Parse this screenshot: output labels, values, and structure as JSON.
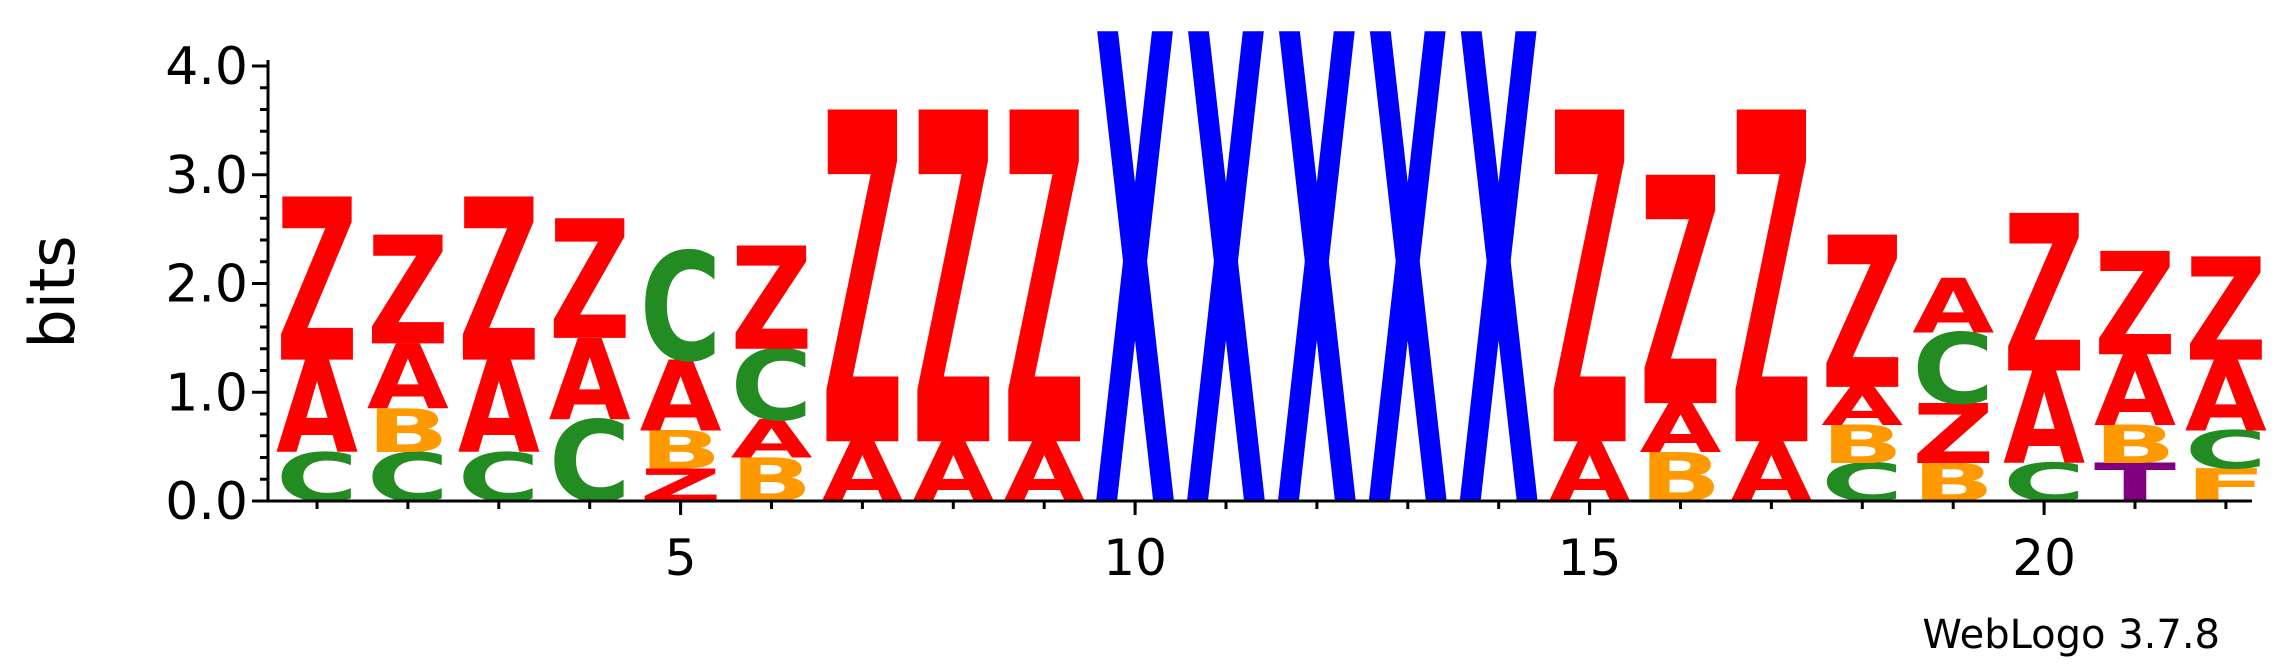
{
  "chart_data": {
    "type": "sequence_logo",
    "ylabel": "bits",
    "ylim": [
      0,
      4.0
    ],
    "yticks": [
      "0.0",
      "1.0",
      "2.0",
      "3.0",
      "4.0"
    ],
    "xticks": [
      {
        "position": 5,
        "label": "5"
      },
      {
        "position": 10,
        "label": "10"
      },
      {
        "position": 15,
        "label": "15"
      },
      {
        "position": 20,
        "label": "20"
      }
    ],
    "credit": "WebLogo 3.7.8",
    "colors": {
      "Z": "#ff0000",
      "A": "#ff0000",
      "X": "#0000ff",
      "C": "#228b22",
      "B": "#ff9900",
      "F": "#ff9900",
      "T": "#800080"
    },
    "positions": [
      {
        "pos": 1,
        "stack": [
          {
            "letter": "C",
            "bits": 0.45
          },
          {
            "letter": "A",
            "bits": 0.85
          },
          {
            "letter": "Z",
            "bits": 1.5
          }
        ]
      },
      {
        "pos": 2,
        "stack": [
          {
            "letter": "C",
            "bits": 0.45
          },
          {
            "letter": "B",
            "bits": 0.4
          },
          {
            "letter": "A",
            "bits": 0.6
          },
          {
            "letter": "Z",
            "bits": 1.0
          }
        ]
      },
      {
        "pos": 3,
        "stack": [
          {
            "letter": "C",
            "bits": 0.45
          },
          {
            "letter": "A",
            "bits": 0.85
          },
          {
            "letter": "Z",
            "bits": 1.5
          }
        ]
      },
      {
        "pos": 4,
        "stack": [
          {
            "letter": "C",
            "bits": 0.75
          },
          {
            "letter": "A",
            "bits": 0.75
          },
          {
            "letter": "Z",
            "bits": 1.1
          }
        ]
      },
      {
        "pos": 5,
        "stack": [
          {
            "letter": "Z",
            "bits": 0.3
          },
          {
            "letter": "B",
            "bits": 0.35
          },
          {
            "letter": "A",
            "bits": 0.65
          },
          {
            "letter": "C",
            "bits": 1.0
          }
        ]
      },
      {
        "pos": 6,
        "stack": [
          {
            "letter": "B",
            "bits": 0.4
          },
          {
            "letter": "A",
            "bits": 0.35
          },
          {
            "letter": "C",
            "bits": 0.65
          },
          {
            "letter": "Z",
            "bits": 0.95
          }
        ]
      },
      {
        "pos": 7,
        "stack": [
          {
            "letter": "A",
            "bits": 0.55
          },
          {
            "letter": "Z",
            "bits": 3.05
          }
        ]
      },
      {
        "pos": 8,
        "stack": [
          {
            "letter": "A",
            "bits": 0.55
          },
          {
            "letter": "Z",
            "bits": 3.05
          }
        ]
      },
      {
        "pos": 9,
        "stack": [
          {
            "letter": "A",
            "bits": 0.55
          },
          {
            "letter": "Z",
            "bits": 3.05
          }
        ]
      },
      {
        "pos": 10,
        "stack": [
          {
            "letter": "X",
            "bits": 4.32
          }
        ]
      },
      {
        "pos": 11,
        "stack": [
          {
            "letter": "X",
            "bits": 4.32
          }
        ]
      },
      {
        "pos": 12,
        "stack": [
          {
            "letter": "X",
            "bits": 4.32
          }
        ]
      },
      {
        "pos": 13,
        "stack": [
          {
            "letter": "X",
            "bits": 4.32
          }
        ]
      },
      {
        "pos": 14,
        "stack": [
          {
            "letter": "X",
            "bits": 4.32
          }
        ]
      },
      {
        "pos": 15,
        "stack": [
          {
            "letter": "A",
            "bits": 0.55
          },
          {
            "letter": "Z",
            "bits": 3.05
          }
        ]
      },
      {
        "pos": 16,
        "stack": [
          {
            "letter": "B",
            "bits": 0.45
          },
          {
            "letter": "A",
            "bits": 0.45
          },
          {
            "letter": "Z",
            "bits": 2.1
          }
        ]
      },
      {
        "pos": 17,
        "stack": [
          {
            "letter": "A",
            "bits": 0.55
          },
          {
            "letter": "Z",
            "bits": 3.05
          }
        ]
      },
      {
        "pos": 18,
        "stack": [
          {
            "letter": "C",
            "bits": 0.35
          },
          {
            "letter": "B",
            "bits": 0.35
          },
          {
            "letter": "A",
            "bits": 0.35
          },
          {
            "letter": "Z",
            "bits": 1.4
          }
        ]
      },
      {
        "pos": 19,
        "stack": [
          {
            "letter": "B",
            "bits": 0.35
          },
          {
            "letter": "Z",
            "bits": 0.55
          },
          {
            "letter": "C",
            "bits": 0.65
          },
          {
            "letter": "A",
            "bits": 0.5
          }
        ]
      },
      {
        "pos": 20,
        "stack": [
          {
            "letter": "C",
            "bits": 0.35
          },
          {
            "letter": "A",
            "bits": 0.85
          },
          {
            "letter": "Z",
            "bits": 1.45
          }
        ]
      },
      {
        "pos": 21,
        "stack": [
          {
            "letter": "T",
            "bits": 0.35
          },
          {
            "letter": "B",
            "bits": 0.35
          },
          {
            "letter": "A",
            "bits": 0.65
          },
          {
            "letter": "Z",
            "bits": 0.95
          }
        ]
      },
      {
        "pos": 22,
        "stack": [
          {
            "letter": "F",
            "bits": 0.3
          },
          {
            "letter": "C",
            "bits": 0.35
          },
          {
            "letter": "A",
            "bits": 0.65
          },
          {
            "letter": "Z",
            "bits": 0.95
          }
        ]
      }
    ]
  }
}
